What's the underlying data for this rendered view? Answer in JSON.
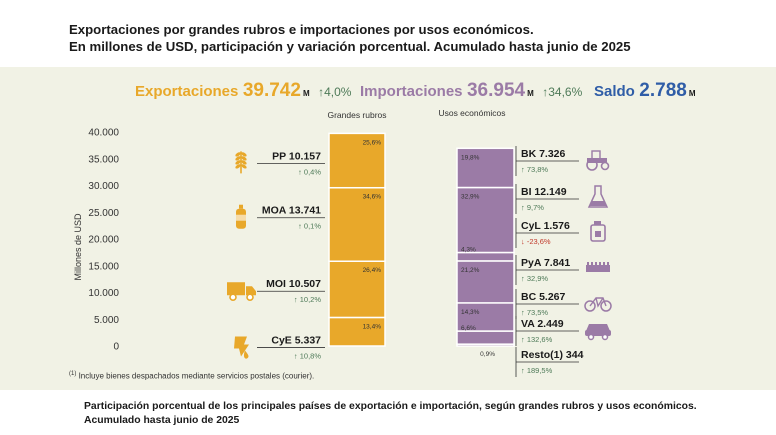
{
  "title_line1": "Exportaciones por grandes rubros e importaciones por usos económicos.",
  "title_line2": "En millones de USD, participación y variación porcentual. Acumulado hasta junio de 2025",
  "kpis": {
    "exp_label": "Exportaciones",
    "exp_value": "39.742",
    "exp_unit": "M",
    "exp_change": "4,0%",
    "imp_label": "Importaciones",
    "imp_value": "36.954",
    "imp_unit": "M",
    "imp_change": "34,6%",
    "saldo_label": "Saldo",
    "saldo_value": "2.788",
    "saldo_unit": "M"
  },
  "colors": {
    "exports": "#e8a82a",
    "imports": "#9b7ba6",
    "saldo": "#2f5da7",
    "up": "#4e7a58",
    "down": "#c0392b",
    "panel": "#f1f2e5"
  },
  "chart_data": {
    "type": "bar",
    "stacked": true,
    "ylabel": "Millones de USD",
    "ylim": [
      0,
      40000
    ],
    "yticks": [
      "0",
      "5.000",
      "10.000",
      "15.000",
      "20.000",
      "25.000",
      "30.000",
      "35.000",
      "40.000"
    ],
    "grid": false,
    "categories": [
      "Grandes rubros",
      "Usos económicos"
    ],
    "exports": [
      {
        "name": "CyE",
        "value": 5337,
        "value_label": "5.337",
        "share": "13,4%",
        "change": "10,8%",
        "direction": "up",
        "icon": "oil-drop-icon"
      },
      {
        "name": "MOI",
        "value": 10507,
        "value_label": "10.507",
        "share": "26,4%",
        "change": "10,2%",
        "direction": "up",
        "icon": "truck-icon"
      },
      {
        "name": "MOA",
        "value": 13741,
        "value_label": "13.741",
        "share": "34,6%",
        "change": "0,1%",
        "direction": "up",
        "icon": "bottle-icon"
      },
      {
        "name": "PP",
        "value": 10157,
        "value_label": "10.157",
        "share": "25,6%",
        "change": "0,4%",
        "direction": "up",
        "icon": "wheat-icon"
      }
    ],
    "imports": [
      {
        "name": "Resto",
        "note": "(1)",
        "value": 344,
        "value_label": "344",
        "share": "0,9%",
        "change": "189,5%",
        "direction": "up",
        "icon": ""
      },
      {
        "name": "VA",
        "value": 2449,
        "value_label": "2.449",
        "share": "6,6%",
        "change": "132,6%",
        "direction": "up",
        "icon": "car-icon"
      },
      {
        "name": "BC",
        "value": 5267,
        "value_label": "5.267",
        "share": "14,3%",
        "change": "73,5%",
        "direction": "up",
        "icon": "bicycle-icon"
      },
      {
        "name": "PyA",
        "value": 7841,
        "value_label": "7.841",
        "share": "21,2%",
        "change": "32,9%",
        "direction": "up",
        "icon": "gear-part-icon"
      },
      {
        "name": "CyL",
        "value": 1576,
        "value_label": "1.576",
        "share": "4,3%",
        "change": "-23,6%",
        "direction": "down",
        "icon": "fuel-can-icon"
      },
      {
        "name": "BI",
        "value": 12149,
        "value_label": "12.149",
        "share": "32,9%",
        "change": "9,7%",
        "direction": "up",
        "icon": "flask-icon"
      },
      {
        "name": "BK",
        "value": 7326,
        "value_label": "7.326",
        "share": "19,8%",
        "change": "73,8%",
        "direction": "up",
        "icon": "tractor-icon"
      }
    ]
  },
  "footnote_mark": "(1)",
  "footnote_text": " Incluye bienes despachados mediante servicios postales (courier).",
  "bottom_note_line1": "Participación porcentual de los principales países de exportación e importación, según grandes rubros y usos económicos.",
  "bottom_note_line2": "Acumulado hasta junio de 2025"
}
